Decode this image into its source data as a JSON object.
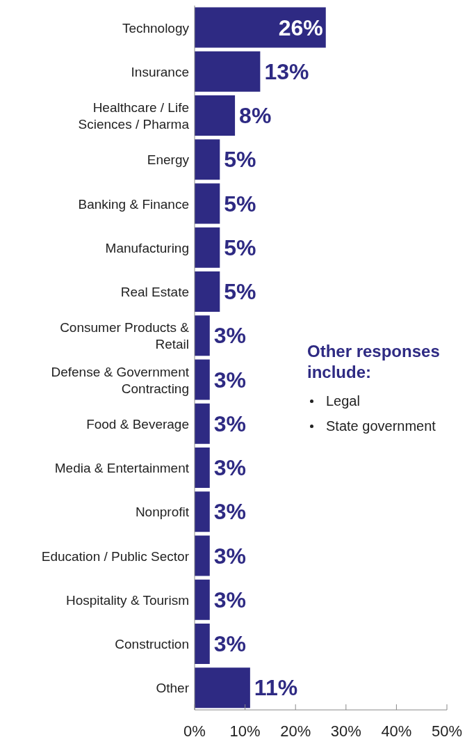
{
  "chart_data": {
    "type": "bar",
    "orientation": "horizontal",
    "categories": [
      "Technology",
      "Insurance",
      "Healthcare / Life Sciences / Pharma",
      "Energy",
      "Banking & Finance",
      "Manufacturing",
      "Real Estate",
      "Consumer Products & Retail",
      "Defense & Government Contracting",
      "Food & Beverage",
      "Media & Entertainment",
      "Nonprofit",
      "Education / Public Sector",
      "Hospitality & Tourism",
      "Construction",
      "Other"
    ],
    "values": [
      26,
      13,
      8,
      5,
      5,
      5,
      5,
      3,
      3,
      3,
      3,
      3,
      3,
      3,
      3,
      11
    ],
    "value_labels": [
      "26%",
      "13%",
      "8%",
      "5%",
      "5%",
      "5%",
      "5%",
      "3%",
      "3%",
      "3%",
      "3%",
      "3%",
      "3%",
      "3%",
      "3%",
      "11%"
    ],
    "color": "#2e2a83",
    "xlim": [
      0,
      50
    ],
    "xticks": [
      {
        "value": 0,
        "label": "0%"
      },
      {
        "value": 10,
        "label": "10%"
      },
      {
        "value": 20,
        "label": "20%"
      },
      {
        "value": 30,
        "label": "30%"
      },
      {
        "value": 40,
        "label": "40%"
      },
      {
        "value": 50,
        "label": "50%"
      }
    ],
    "grid": false,
    "annotations": [
      "Other responses include:",
      "Legal",
      "State government"
    ]
  }
}
